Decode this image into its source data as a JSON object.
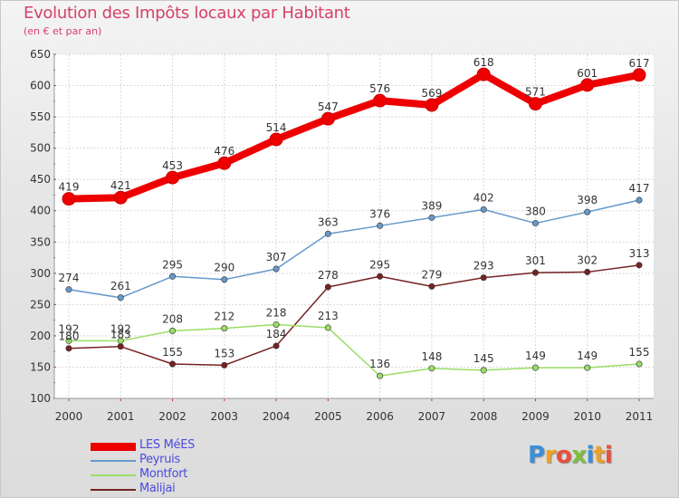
{
  "title": "Evolution des Impôts locaux par Habitant",
  "subtitle": "(en € et par an)",
  "logo": {
    "text": "Proxiti",
    "letters": [
      "P",
      "r",
      "o",
      "x",
      "i",
      "t",
      "i"
    ]
  },
  "chart_data": {
    "type": "line",
    "x": [
      "2000",
      "2001",
      "2002",
      "2003",
      "2004",
      "2005",
      "2006",
      "2007",
      "2008",
      "2009",
      "2010",
      "2011"
    ],
    "ylim": [
      100,
      650
    ],
    "yticks": [
      100,
      150,
      200,
      250,
      300,
      350,
      400,
      450,
      500,
      550,
      600,
      650
    ],
    "grid": true,
    "legend": "bottom-left",
    "series": [
      {
        "name": "LES MéES",
        "color": "#ee0000",
        "values": [
          419,
          421,
          453,
          476,
          514,
          547,
          576,
          569,
          618,
          571,
          601,
          617
        ]
      },
      {
        "name": "Peyruis",
        "color": "#6699cc",
        "values": [
          274,
          261,
          295,
          290,
          307,
          363,
          376,
          389,
          402,
          380,
          398,
          417
        ]
      },
      {
        "name": "Montfort",
        "color": "#99dd66",
        "values": [
          192,
          192,
          208,
          212,
          218,
          213,
          136,
          148,
          145,
          149,
          149,
          155
        ]
      },
      {
        "name": "Malijai",
        "color": "#772222",
        "values": [
          180,
          183,
          155,
          153,
          184,
          278,
          295,
          279,
          293,
          301,
          302,
          313
        ]
      }
    ]
  }
}
